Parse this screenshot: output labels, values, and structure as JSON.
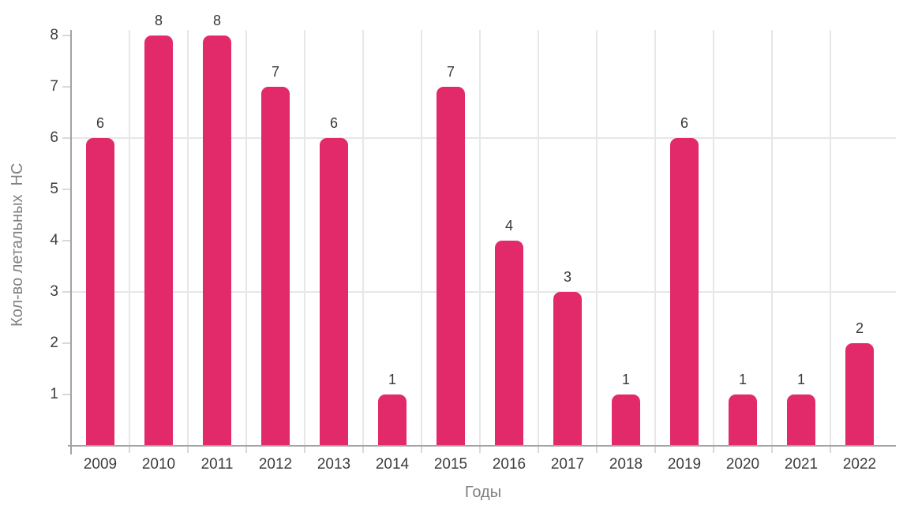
{
  "chart_data": {
    "type": "bar",
    "categories": [
      "2009",
      "2010",
      "2011",
      "2012",
      "2013",
      "2014",
      "2015",
      "2016",
      "2017",
      "2018",
      "2019",
      "2020",
      "2021",
      "2022"
    ],
    "values": [
      6,
      8,
      8,
      7,
      6,
      1,
      7,
      4,
      3,
      1,
      6,
      1,
      1,
      2
    ],
    "title": "",
    "xlabel": "Годы",
    "ylabel": "Кол-во летальных  НС",
    "ylim": [
      0,
      8
    ],
    "yticks": [
      1,
      2,
      3,
      4,
      5,
      6,
      7,
      8
    ],
    "h_gridlines": [
      3,
      6
    ],
    "grid": "vertical-lines-at-category-boundaries",
    "legend": "none",
    "data_labels": true,
    "colors": {
      "bar": "#E2296A",
      "gridline": "#E7E7E7",
      "axis_line": "#A2A2A2",
      "tick_mark": "#D9D9D9",
      "tick_label": "#3D3D3D",
      "value_label": "#383838",
      "axis_title": "#808080"
    }
  }
}
